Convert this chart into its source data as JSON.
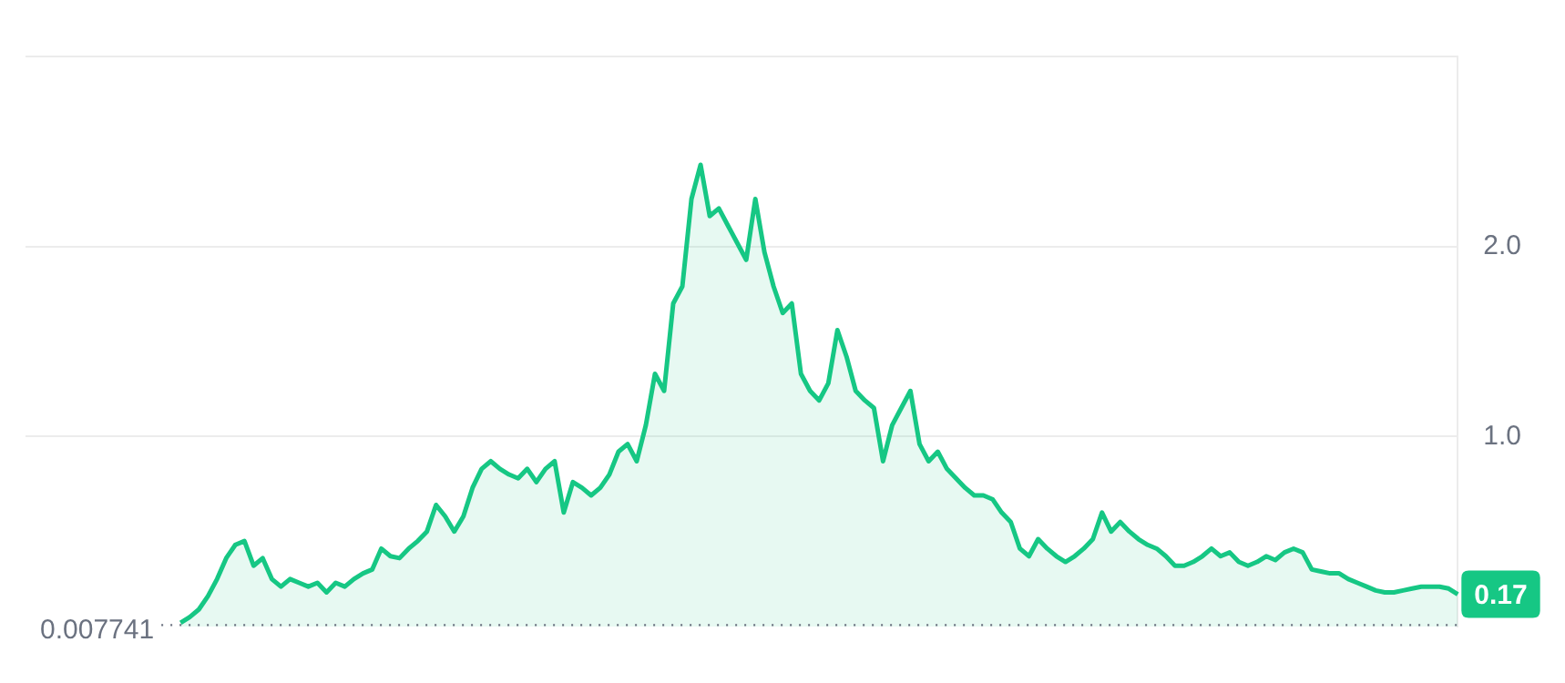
{
  "chart_data": {
    "type": "area",
    "categories": [
      null,
      null,
      null,
      null,
      null,
      null,
      null,
      null,
      null,
      null,
      null,
      null,
      null,
      null,
      null,
      null,
      null,
      null,
      null,
      null,
      null,
      null,
      null,
      null,
      null,
      null,
      null,
      null,
      null,
      null,
      null,
      null,
      null,
      null,
      null,
      null,
      null,
      null,
      null,
      null,
      null,
      null,
      null,
      null,
      null,
      null,
      null,
      null,
      null,
      null,
      null,
      null,
      null,
      null,
      null,
      null,
      null,
      null,
      null,
      null,
      null,
      null,
      null,
      null,
      null,
      null,
      null,
      null,
      null,
      null,
      null,
      null,
      null,
      null,
      null,
      null,
      null,
      null,
      null,
      null,
      null,
      null,
      null,
      null,
      null,
      null,
      null,
      null,
      null,
      null,
      null,
      null,
      null,
      null,
      null,
      null,
      null,
      null,
      null,
      null,
      null,
      null,
      null,
      null,
      null,
      null,
      null,
      null,
      null,
      null,
      null,
      null,
      null,
      null,
      null,
      null,
      null,
      null,
      null,
      null,
      null,
      null,
      null,
      null,
      null,
      null,
      null,
      null,
      null,
      null,
      null,
      null,
      null,
      null,
      null,
      null,
      null,
      null,
      null,
      null,
      null,
      null,
      null,
      null,
      null,
      null,
      null,
      null,
      null,
      null,
      null,
      null,
      null,
      null,
      null,
      null,
      null,
      null
    ],
    "series": [
      {
        "color": "#16c784",
        "values": [
          null,
          null,
          null,
          null,
          null,
          null,
          null,
          null,
          null,
          null,
          null,
          null,
          null,
          null,
          null,
          null,
          null,
          0.02,
          0.05,
          0.09,
          0.16,
          0.25,
          0.36,
          0.43,
          0.45,
          0.32,
          0.36,
          0.25,
          0.21,
          0.25,
          0.23,
          0.21,
          0.23,
          0.18,
          0.23,
          0.21,
          0.25,
          0.28,
          0.3,
          0.41,
          0.37,
          0.36,
          0.41,
          0.45,
          0.5,
          0.64,
          0.58,
          0.5,
          0.58,
          0.73,
          0.83,
          0.87,
          0.83,
          0.8,
          0.78,
          0.83,
          0.76,
          0.83,
          0.87,
          0.6,
          0.76,
          0.73,
          0.69,
          0.73,
          0.8,
          0.92,
          0.96,
          0.87,
          1.06,
          1.33,
          1.24,
          1.7,
          1.79,
          2.25,
          2.43,
          2.16,
          2.2,
          2.11,
          2.02,
          1.93,
          2.25,
          1.97,
          1.79,
          1.65,
          1.7,
          1.33,
          1.24,
          1.19,
          1.28,
          1.56,
          1.42,
          1.24,
          1.19,
          1.15,
          0.87,
          1.06,
          1.15,
          1.24,
          0.96,
          0.87,
          0.92,
          0.83,
          0.78,
          0.73,
          0.69,
          0.69,
          0.67,
          0.6,
          0.55,
          0.41,
          0.37,
          0.46,
          0.41,
          0.37,
          0.34,
          0.37,
          0.41,
          0.46,
          0.6,
          0.5,
          0.55,
          0.5,
          0.46,
          0.43,
          0.41,
          0.37,
          0.32,
          0.32,
          0.34,
          0.37,
          0.41,
          0.37,
          0.39,
          0.34,
          0.32,
          0.34,
          0.37,
          0.35,
          0.39,
          0.41,
          0.39,
          0.3,
          0.29,
          0.28,
          0.28,
          0.25,
          0.23,
          0.21,
          0.19,
          0.18,
          0.18,
          0.19,
          0.2,
          0.21,
          0.21,
          0.21,
          0.2,
          0.17
        ]
      }
    ],
    "ylim": [
      0,
      3
    ],
    "yticks": [
      {
        "value": 1,
        "label": "1.0"
      },
      {
        "value": 2,
        "label": "2.0"
      },
      {
        "value": 3,
        "label": null
      }
    ],
    "grid": "y",
    "tick_labels": "y",
    "marker": "none",
    "ref_lines": [
      {
        "axis": "y",
        "value": 0.007741,
        "label": "0.007741",
        "color": "#6b7280",
        "line_style": "dotted"
      }
    ],
    "annotations": [
      {
        "text": "0.17",
        "y": 0.17
      }
    ]
  }
}
